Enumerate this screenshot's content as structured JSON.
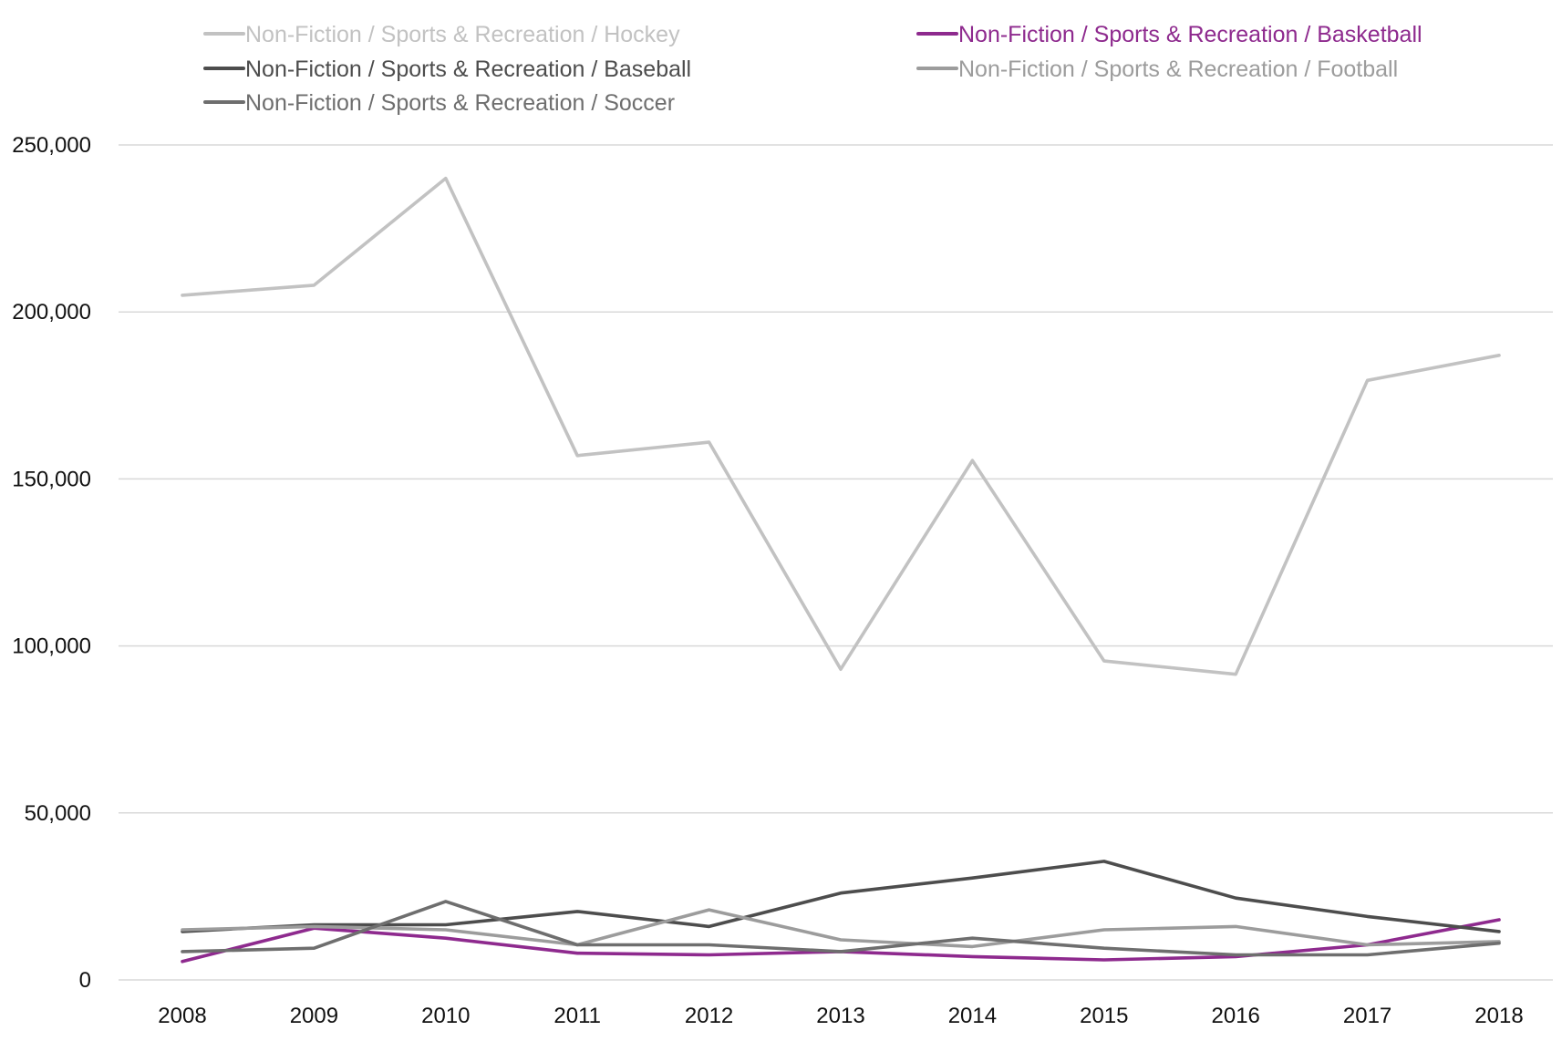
{
  "chart_data": {
    "type": "line",
    "title": "",
    "xlabel": "",
    "ylabel": "",
    "x": [
      "2008",
      "2009",
      "2010",
      "2011",
      "2012",
      "2013",
      "2014",
      "2015",
      "2016",
      "2017",
      "2018"
    ],
    "ylim": [
      0,
      250000
    ],
    "yticks": [
      0,
      50000,
      100000,
      150000,
      200000,
      250000
    ],
    "ytick_labels": [
      "0",
      "50,000",
      "100,000",
      "150,000",
      "200,000",
      "250,000"
    ],
    "grid": true,
    "legend_position": "top",
    "series": [
      {
        "name": "Non-Fiction / Sports & Recreation / Hockey",
        "color": "#c2c2c2",
        "values": [
          205000,
          208000,
          240000,
          157000,
          161000,
          93000,
          155500,
          95500,
          91500,
          179500,
          187000
        ]
      },
      {
        "name": "Non-Fiction / Sports & Recreation / Basketball",
        "color": "#8e2a8e",
        "values": [
          5500,
          15500,
          12500,
          8000,
          7500,
          8500,
          7000,
          6000,
          7000,
          10500,
          18000
        ]
      },
      {
        "name": "Non-Fiction / Sports & Recreation / Baseball",
        "color": "#4d4d4d",
        "values": [
          14500,
          16500,
          16500,
          20500,
          16000,
          26000,
          30500,
          35500,
          24500,
          19000,
          14500
        ]
      },
      {
        "name": "Non-Fiction / Sports & Recreation / Football",
        "color": "#9c9c9c",
        "values": [
          15000,
          16000,
          15000,
          10500,
          21000,
          12000,
          10000,
          15000,
          16000,
          10500,
          11500
        ]
      },
      {
        "name": "Non-Fiction / Sports & Recreation / Soccer",
        "color": "#6e6e6e",
        "values": [
          8500,
          9500,
          23500,
          10500,
          10500,
          8500,
          12500,
          9500,
          7500,
          7500,
          11000
        ]
      }
    ]
  }
}
